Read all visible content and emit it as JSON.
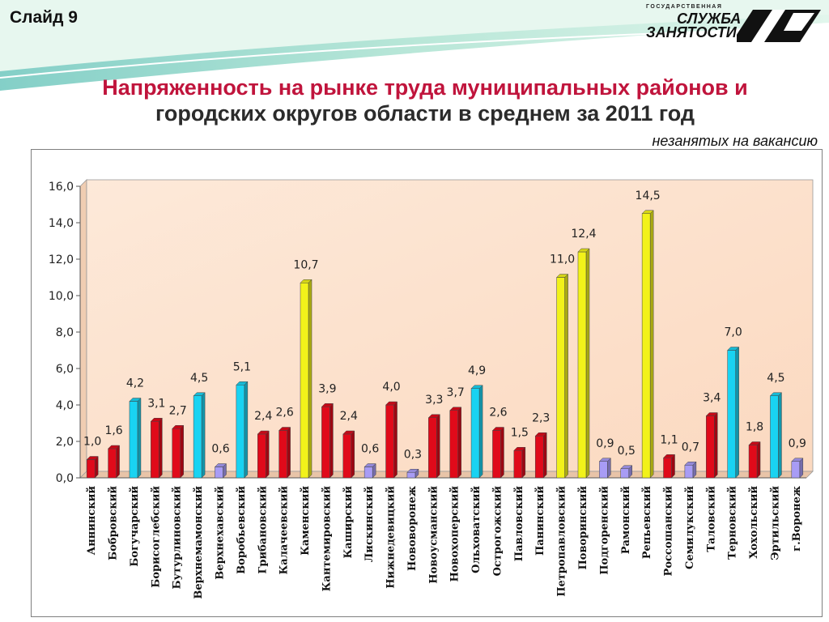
{
  "slide": {
    "label": "Слайд 9"
  },
  "logo": {
    "line1": "ГОСУДАРСТВЕННАЯ",
    "line2": "СЛУЖБА",
    "line3": "ЗАНЯТОСТИ"
  },
  "title": {
    "line1": "Напряженность на рынке труда муниципальных районов и",
    "line2": "городских округов области в среднем за  2011 год"
  },
  "unit_note": "незанятых на вакансию",
  "colors": {
    "title_red": "#c0143c",
    "plot_fill": "#fbe5d6",
    "red": "#e00a1a",
    "cyan": "#19d3f2",
    "yellow": "#f2f21a",
    "lavender": "#a89cf5"
  },
  "chart_data": {
    "type": "bar",
    "title": "",
    "xlabel": "",
    "ylabel": "",
    "ylim": [
      0,
      16
    ],
    "yticks": [
      "0,0",
      "2,0",
      "4,0",
      "6,0",
      "8,0",
      "10,0",
      "12,0",
      "14,0",
      "16,0"
    ],
    "grid": false,
    "legend": "none",
    "categories": [
      "Аннинский",
      "Бобровский",
      "Богучарский",
      "Борисоглебский",
      "Бутурлиновский",
      "Верхнемамонский",
      "Верхнехавский",
      "Воробьевский",
      "Грибановский",
      "Калачеевский",
      "Каменский",
      "Кантемировский",
      "Каширский",
      "Лискинский",
      "Нижнедевицкий",
      "Нововоронеж",
      "Новоусманский",
      "Новохоперский",
      "Ольховатский",
      "Острогожский",
      "Павловский",
      "Панинский",
      "Петропавловский",
      "Поворинский",
      "Подгоренский",
      "Рамонский",
      "Репьевский",
      "Россошанский",
      "Семилукский",
      "Таловский",
      "Терновский",
      "Хохольский",
      "Эртильский",
      "г.Воронеж"
    ],
    "values": [
      1.0,
      1.6,
      4.2,
      3.1,
      2.7,
      4.5,
      0.6,
      5.1,
      2.4,
      2.6,
      10.7,
      3.9,
      2.4,
      0.6,
      4.0,
      0.3,
      3.3,
      3.7,
      4.9,
      2.6,
      1.5,
      2.3,
      11.0,
      12.4,
      0.9,
      0.5,
      14.5,
      1.1,
      0.7,
      3.4,
      7.0,
      1.8,
      4.5,
      0.9
    ],
    "labels": [
      "1,0",
      "1,6",
      "4,2",
      "3,1",
      "2,7",
      "4,5",
      "0,6",
      "5,1",
      "2,4",
      "2,6",
      "10,7",
      "3,9",
      "2,4",
      "0,6",
      "4,0",
      "0,3",
      "3,3",
      "3,7",
      "4,9",
      "2,6",
      "1,5",
      "2,3",
      "11,0",
      "12,4",
      "0,9",
      "0,5",
      "14,5",
      "1,1",
      "0,7",
      "3,4",
      "7,0",
      "1,8",
      "4,5",
      "0,9"
    ],
    "bar_colors": [
      "red",
      "red",
      "cyan",
      "red",
      "red",
      "cyan",
      "lavender",
      "cyan",
      "red",
      "red",
      "yellow",
      "red",
      "red",
      "lavender",
      "red",
      "lavender",
      "red",
      "red",
      "cyan",
      "red",
      "red",
      "red",
      "yellow",
      "yellow",
      "lavender",
      "lavender",
      "yellow",
      "red",
      "lavender",
      "red",
      "cyan",
      "red",
      "cyan",
      "lavender"
    ]
  }
}
